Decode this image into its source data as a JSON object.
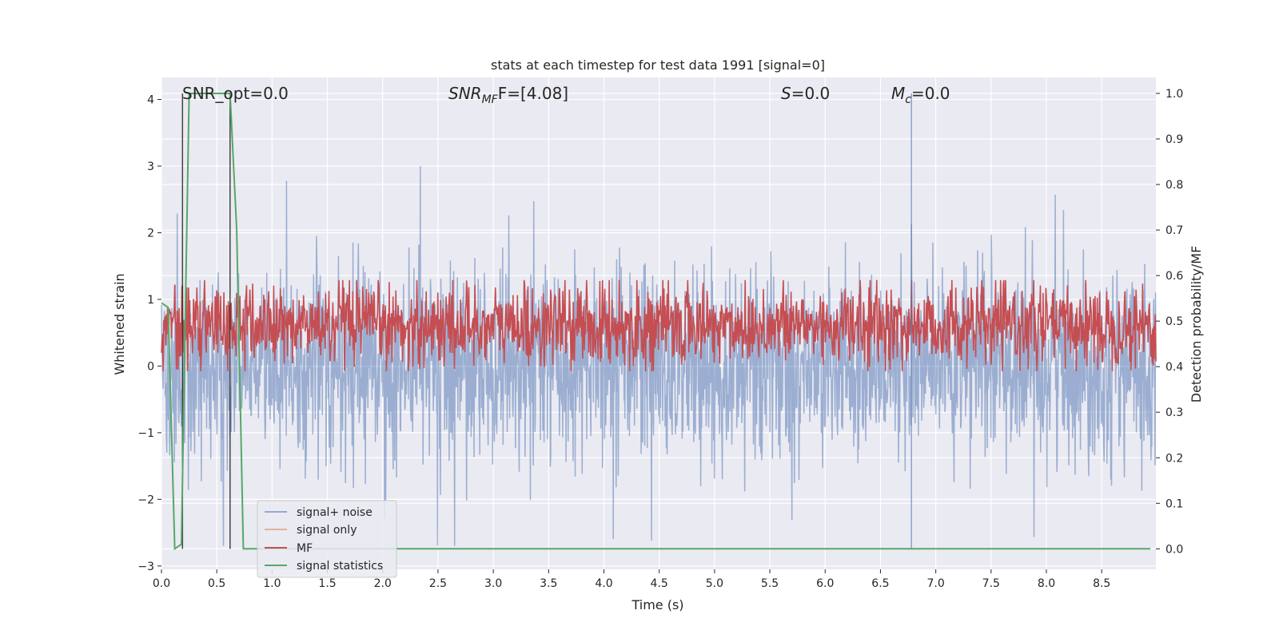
{
  "chart_data": {
    "type": "line",
    "title": "stats at each timestep for test data 1991 [signal=0]",
    "xlabel": "Time (s)",
    "ylabel_left": "Whitened strain",
    "ylabel_right": "Detection probability/MF",
    "xlim": [
      0.0,
      8.99
    ],
    "ylim_left": [
      -3.05,
      4.33
    ],
    "ylim_right": [
      -0.045,
      1.035
    ],
    "x_ticks": [
      "0.0",
      "0.5",
      "1.0",
      "1.5",
      "2.0",
      "2.5",
      "3.0",
      "3.5",
      "4.0",
      "4.5",
      "5.0",
      "5.5",
      "6.0",
      "6.5",
      "7.0",
      "7.5",
      "8.0",
      "8.5"
    ],
    "y_left_ticks": [
      "4",
      "3",
      "2",
      "1",
      "0",
      "−1",
      "−2",
      "−3"
    ],
    "y_right_ticks": [
      "1.0",
      "0.9",
      "0.8",
      "0.7",
      "0.6",
      "0.5",
      "0.4",
      "0.3",
      "0.2",
      "0.1",
      "0.0"
    ],
    "grid": true,
    "legend_position": "lower-left",
    "colors": {
      "background": "#eaeaf2",
      "grid": "#ffffff",
      "noise": "#4c72b0",
      "signal_only": "#dd8452",
      "mf": "#c44e52",
      "statistics": "#55a868",
      "vline": "#333333"
    },
    "annotations": {
      "snr_opt": "SNR_opt=0.0",
      "snr_mf_base": "SNR",
      "snr_mf_sub": "MF",
      "snr_mf_rest": "F=[4.08]",
      "s_stat_sym": "S",
      "s_stat_rest": "=0.0",
      "mc_sym": "M",
      "mc_sub": "c",
      "mc_rest": "=0.0"
    },
    "series": [
      {
        "name": "signal+ noise",
        "axis": "left",
        "description_range": [
          -2.8,
          3.0
        ],
        "notable_peaks": [
          {
            "x": 2.34,
            "y": 3.0
          },
          {
            "x": 1.13,
            "y": 2.78
          },
          {
            "x": 6.78,
            "y": 2.13
          },
          {
            "x": 3.14,
            "y": 2.26
          },
          {
            "x": 8.08,
            "y": 2.57
          },
          {
            "x": 4.43,
            "y": -2.62
          },
          {
            "x": 2.65,
            "y": -2.7
          },
          {
            "x": 0.56,
            "y": -2.7
          }
        ]
      },
      {
        "name": "signal only",
        "axis": "left",
        "values": []
      },
      {
        "name": "MF",
        "axis": "right",
        "band": [
          0.4,
          0.58
        ],
        "notable_peaks": [
          {
            "x": 0.19,
            "y": 1.0
          },
          {
            "x": 0.62,
            "y": 1.0
          },
          {
            "x": 6.78,
            "y": 1.0
          }
        ]
      },
      {
        "name": "signal statistics",
        "axis": "right",
        "points": [
          [
            0.0,
            0.54
          ],
          [
            0.06,
            0.53
          ],
          [
            0.12,
            0.0
          ],
          [
            0.18,
            0.01
          ],
          [
            0.25,
            1.0
          ],
          [
            0.62,
            1.0
          ],
          [
            0.68,
            0.7
          ],
          [
            0.74,
            0.0
          ],
          [
            8.94,
            0.0
          ]
        ]
      }
    ],
    "legend": [
      "signal+ noise",
      "signal only",
      "MF",
      "signal statistics"
    ]
  }
}
